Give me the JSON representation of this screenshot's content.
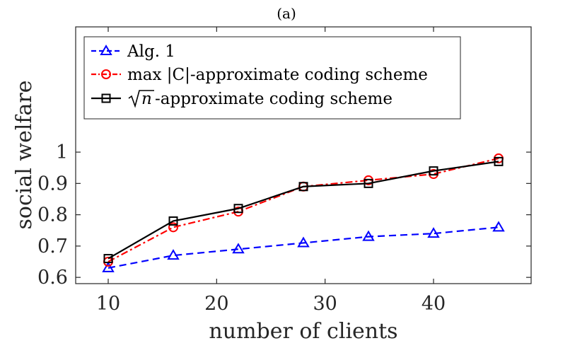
{
  "chart_data": {
    "type": "line",
    "title": "(a)",
    "xlabel": "number of clients",
    "ylabel": "social welfare",
    "x": [
      10,
      16,
      22,
      28,
      34,
      40,
      46
    ],
    "xlim": [
      7,
      49
    ],
    "ylim": [
      0.58,
      1.4
    ],
    "xticks": [
      10,
      20,
      30,
      40
    ],
    "yticks": [
      0.6,
      0.7,
      0.8,
      0.9,
      1
    ],
    "ytick_labels": [
      "0.6",
      "0.7",
      "0.8",
      "0.9",
      "1"
    ],
    "legend_position": "top-left",
    "series": [
      {
        "name": "Alg. 1",
        "legend_label": "Alg. 1",
        "values": [
          0.63,
          0.67,
          0.69,
          0.71,
          0.73,
          0.74,
          0.76
        ],
        "color": "#0000ff",
        "line_style": "dashed",
        "marker": "triangle"
      },
      {
        "name": "max |C|-approximate coding scheme",
        "legend_label": "max |C|-approximate coding scheme",
        "values": [
          0.65,
          0.76,
          0.81,
          0.89,
          0.91,
          0.93,
          0.98
        ],
        "color": "#ff0000",
        "line_style": "dash-dot",
        "marker": "circle"
      },
      {
        "name": "√n-approximate coding scheme",
        "legend_label": "-approximate coding scheme",
        "legend_math": "n",
        "values": [
          0.66,
          0.78,
          0.82,
          0.89,
          0.9,
          0.94,
          0.97
        ],
        "color": "#000000",
        "line_style": "solid",
        "marker": "square"
      }
    ]
  }
}
